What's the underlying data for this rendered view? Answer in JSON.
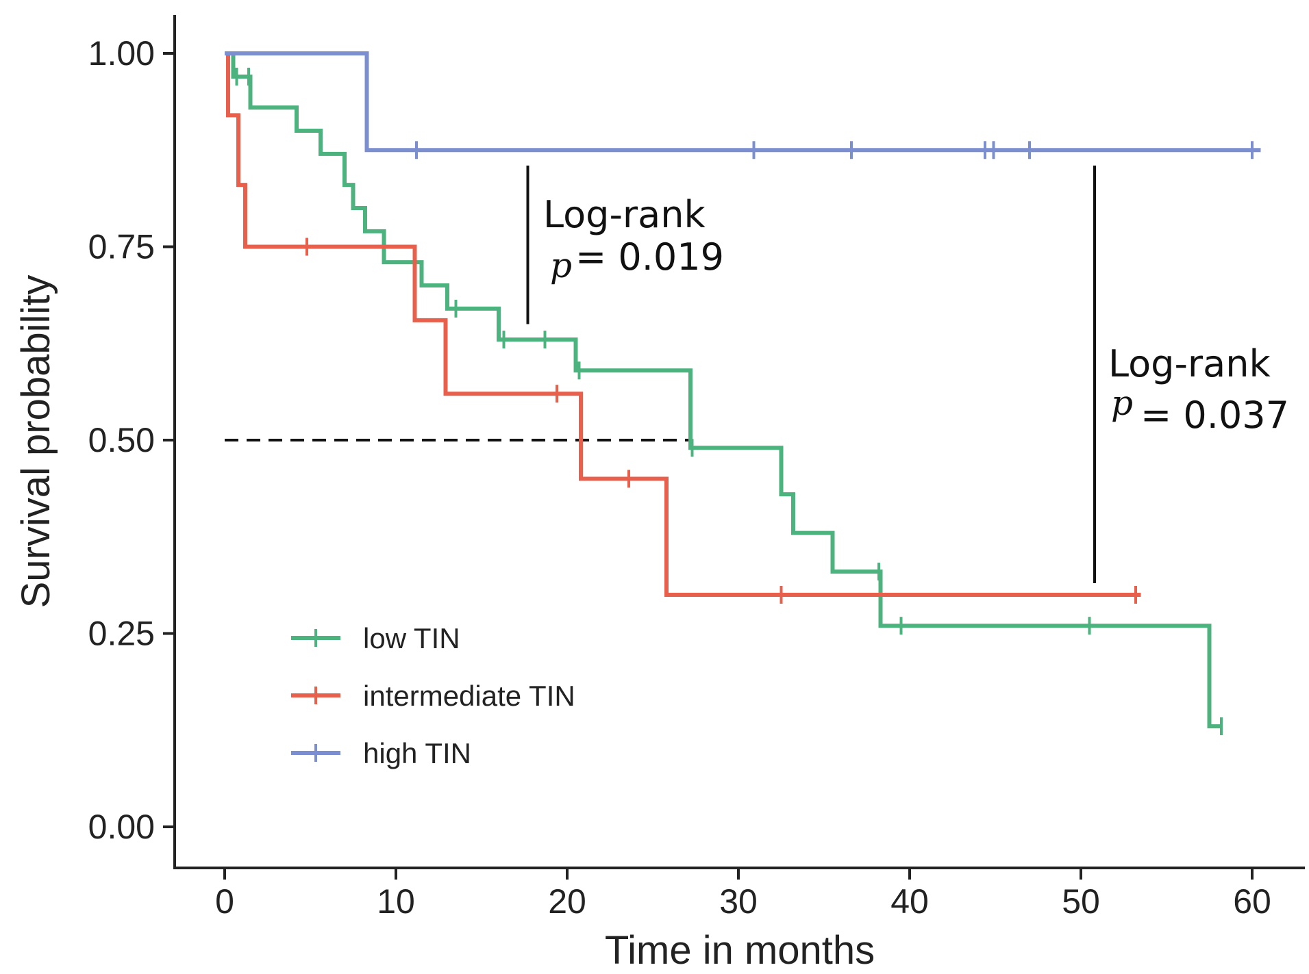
{
  "chart_data": {
    "type": "line",
    "subtype": "kaplan-meier-step",
    "title": "",
    "xlabel": "Time in months",
    "ylabel": "Survival probability",
    "xlim": [
      -3,
      63
    ],
    "ylim": [
      -0.05,
      1.05
    ],
    "x_ticks": [
      0,
      10,
      20,
      30,
      40,
      50,
      60
    ],
    "x_tick_labels": [
      "0",
      "10",
      "20",
      "30",
      "40",
      "50",
      "60"
    ],
    "y_ticks": [
      0,
      0.25,
      0.5,
      0.75,
      1
    ],
    "y_tick_labels": [
      "0.00",
      "0.25",
      "0.50",
      "0.75",
      "1.00"
    ],
    "grid": false,
    "legend_position": "bottom-left",
    "series": [
      {
        "name": "low TIN",
        "color": "#4db37e",
        "steps": [
          [
            0,
            1.0
          ],
          [
            0.5,
            0.97
          ],
          [
            1.5,
            0.93
          ],
          [
            4.2,
            0.9
          ],
          [
            5.6,
            0.87
          ],
          [
            7,
            0.83
          ],
          [
            7.5,
            0.8
          ],
          [
            8.2,
            0.77
          ],
          [
            9.3,
            0.73
          ],
          [
            11.5,
            0.7
          ],
          [
            13,
            0.67
          ],
          [
            16,
            0.63
          ],
          [
            20.5,
            0.59
          ],
          [
            27.2,
            0.49
          ],
          [
            32.5,
            0.43
          ],
          [
            33.2,
            0.38
          ],
          [
            35.5,
            0.33
          ],
          [
            38.3,
            0.26
          ],
          [
            57.5,
            0.13
          ],
          [
            58.2,
            0.13
          ]
        ],
        "censor_times": [
          0.7,
          1.4,
          13.5,
          16.3,
          18.7,
          20.7,
          27.3,
          38.2,
          39.5,
          50.5,
          58.2
        ]
      },
      {
        "name": "intermediate TIN",
        "color": "#e8604c",
        "steps": [
          [
            0,
            1.0
          ],
          [
            0.2,
            0.92
          ],
          [
            0.8,
            0.83
          ],
          [
            1.2,
            0.75
          ],
          [
            11.1,
            0.655
          ],
          [
            12.9,
            0.56
          ],
          [
            20.8,
            0.45
          ],
          [
            25.8,
            0.3
          ],
          [
            53.5,
            0.3
          ]
        ],
        "censor_times": [
          4.8,
          19.4,
          23.6,
          32.5,
          53.2
        ]
      },
      {
        "name": "high TIN",
        "color": "#7b8fd0",
        "steps": [
          [
            0,
            1.0
          ],
          [
            8.3,
            0.875
          ],
          [
            60.5,
            0.875
          ]
        ],
        "censor_times": [
          11.2,
          30.9,
          36.6,
          44.4,
          44.9,
          47,
          60
        ]
      }
    ],
    "median_line": {
      "y": 0.5,
      "x_from": 0,
      "x_to": 27.2,
      "style": "dashed"
    },
    "annotations": [
      {
        "label": "Log-rank",
        "p_symbol": "p",
        "p_text": "= 0.019",
        "bar_x": 17.7,
        "bar_y_top": 0.855,
        "bar_y_bottom": 0.65
      },
      {
        "label": "Log-rank",
        "p_symbol": "p",
        "p_text": "= 0.037",
        "bar_x": 50.8,
        "bar_y_top": 0.855,
        "bar_y_bottom": 0.315
      }
    ]
  }
}
